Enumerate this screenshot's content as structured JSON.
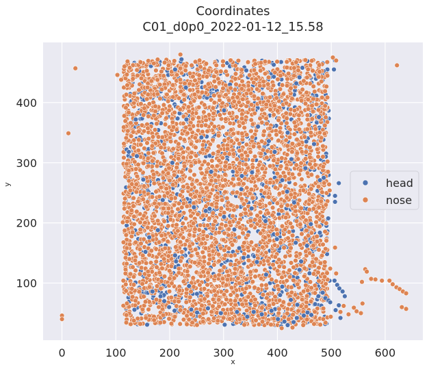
{
  "chart_data": {
    "type": "scatter",
    "title_line1": "Coordinates",
    "title_line2": "C01_d0p0_2022-01-12_15.58",
    "xlabel": "x",
    "ylabel": "y",
    "xlim": [
      -35,
      670
    ],
    "ylim": [
      5,
      500
    ],
    "xticks": [
      0,
      100,
      200,
      300,
      400,
      500,
      600
    ],
    "yticks": [
      100,
      200,
      300,
      400
    ],
    "grid": true,
    "legend_position": "center-right",
    "background": "#eaeaf2",
    "series": [
      {
        "name": "head",
        "color": "#4c72b0",
        "region": {
          "x": [
            118,
            497
          ],
          "y": [
            30,
            470
          ]
        },
        "points": [
          [
            210,
            455
          ],
          [
            222,
            472
          ],
          [
            507,
            470
          ],
          [
            505,
            455
          ],
          [
            230,
            425
          ],
          [
            312,
            430
          ],
          [
            120,
            322
          ],
          [
            124,
            318
          ],
          [
            137,
            372
          ],
          [
            139,
            311
          ],
          [
            231,
            372
          ],
          [
            259,
            342
          ],
          [
            301,
            387
          ],
          [
            334,
            278
          ],
          [
            333,
            256
          ],
          [
            353,
            284
          ],
          [
            409,
            271
          ],
          [
            418,
            252
          ],
          [
            431,
            234
          ],
          [
            452,
            291
          ],
          [
            479,
            271
          ],
          [
            486,
            275
          ],
          [
            507,
            245
          ],
          [
            507,
            235
          ],
          [
            514,
            266
          ],
          [
            399,
            173
          ],
          [
            434,
            167
          ],
          [
            455,
            162
          ],
          [
            441,
            122
          ],
          [
            444,
            136
          ],
          [
            210,
            146
          ],
          [
            212,
            136
          ],
          [
            187,
            238
          ],
          [
            245,
            226
          ],
          [
            267,
            220
          ],
          [
            301,
            210
          ],
          [
            320,
            189
          ],
          [
            329,
            158
          ],
          [
            337,
            142
          ],
          [
            362,
            135
          ],
          [
            379,
            114
          ],
          [
            409,
            94
          ],
          [
            236,
            95
          ],
          [
            168,
            86
          ],
          [
            183,
            78
          ],
          [
            190,
            70
          ],
          [
            199,
            60
          ],
          [
            209,
            54
          ],
          [
            218,
            53
          ],
          [
            240,
            56
          ],
          [
            251,
            51
          ],
          [
            271,
            58
          ],
          [
            295,
            50
          ],
          [
            325,
            52
          ],
          [
            344,
            44
          ],
          [
            356,
            52
          ],
          [
            371,
            48
          ],
          [
            389,
            54
          ],
          [
            401,
            40
          ],
          [
            407,
            28
          ],
          [
            413,
            36
          ],
          [
            419,
            30
          ],
          [
            430,
            35
          ],
          [
            436,
            42
          ],
          [
            449,
            46
          ],
          [
            456,
            51
          ],
          [
            463,
            47
          ],
          [
            470,
            65
          ],
          [
            476,
            78
          ],
          [
            484,
            84
          ],
          [
            489,
            75
          ],
          [
            495,
            71
          ],
          [
            506,
            104
          ],
          [
            511,
            97
          ],
          [
            515,
            91
          ],
          [
            521,
            86
          ],
          [
            525,
            78
          ],
          [
            514,
            63
          ],
          [
            517,
            42
          ],
          [
            508,
            55
          ],
          [
            498,
            68
          ],
          [
            437,
            64
          ],
          [
            425,
            72
          ],
          [
            405,
            80
          ],
          [
            364,
            360
          ],
          [
            384,
            336
          ],
          [
            395,
            318
          ],
          [
            419,
            350
          ],
          [
            426,
            306
          ],
          [
            468,
            331
          ],
          [
            435,
            432
          ],
          [
            441,
            442
          ],
          [
            477,
            376
          ],
          [
            178,
            188
          ],
          [
            162,
            176
          ],
          [
            151,
            272
          ],
          [
            205,
            300
          ],
          [
            277,
            285
          ],
          [
            352,
            224
          ],
          [
            378,
            203
          ],
          [
            462,
            198
          ]
        ]
      },
      {
        "name": "nose",
        "color": "#dd8452",
        "region": {
          "x": [
            114,
            493
          ],
          "y": [
            30,
            472
          ]
        },
        "points": [
          [
            0,
            46
          ],
          [
            0,
            40
          ],
          [
            12,
            349
          ],
          [
            25,
            457
          ],
          [
            103,
            446
          ],
          [
            110,
            438
          ],
          [
            120,
            298
          ],
          [
            124,
            287
          ],
          [
            127,
            254
          ],
          [
            116,
            233
          ],
          [
            113,
            201
          ],
          [
            118,
            116
          ],
          [
            114,
            104
          ],
          [
            119,
            87
          ],
          [
            131,
            77
          ],
          [
            155,
            69
          ],
          [
            197,
            457
          ],
          [
            198,
            462
          ],
          [
            220,
            480
          ],
          [
            230,
            461
          ],
          [
            247,
            437
          ],
          [
            292,
            433
          ],
          [
            313,
            424
          ],
          [
            503,
            475
          ],
          [
            509,
            470
          ],
          [
            493,
            302
          ],
          [
            494,
            285
          ],
          [
            496,
            264
          ],
          [
            497,
            254
          ],
          [
            490,
            230
          ],
          [
            507,
            159
          ],
          [
            480,
            133
          ],
          [
            498,
            124
          ],
          [
            509,
            116
          ],
          [
            532,
            48
          ],
          [
            542,
            59
          ],
          [
            547,
            53
          ],
          [
            555,
            50
          ],
          [
            557,
            102
          ],
          [
            563,
            123
          ],
          [
            566,
            119
          ],
          [
            574,
            107
          ],
          [
            582,
            106
          ],
          [
            594,
            104
          ],
          [
            608,
            104
          ],
          [
            614,
            98
          ],
          [
            621,
            93
          ],
          [
            627,
            90
          ],
          [
            633,
            86
          ],
          [
            639,
            83
          ],
          [
            622,
            462
          ],
          [
            631,
            60
          ],
          [
            639,
            57
          ],
          [
            558,
            66
          ],
          [
            523,
            62
          ],
          [
            517,
            52
          ],
          [
            499,
            44
          ],
          [
            485,
            40
          ],
          [
            468,
            32
          ],
          [
            448,
            30
          ],
          [
            428,
            26
          ],
          [
            408,
            25
          ],
          [
            388,
            31
          ],
          [
            360,
            38
          ],
          [
            330,
            40
          ],
          [
            300,
            42
          ],
          [
            272,
            40
          ],
          [
            262,
            36
          ],
          [
            240,
            48
          ],
          [
            220,
            55
          ]
        ]
      }
    ]
  }
}
